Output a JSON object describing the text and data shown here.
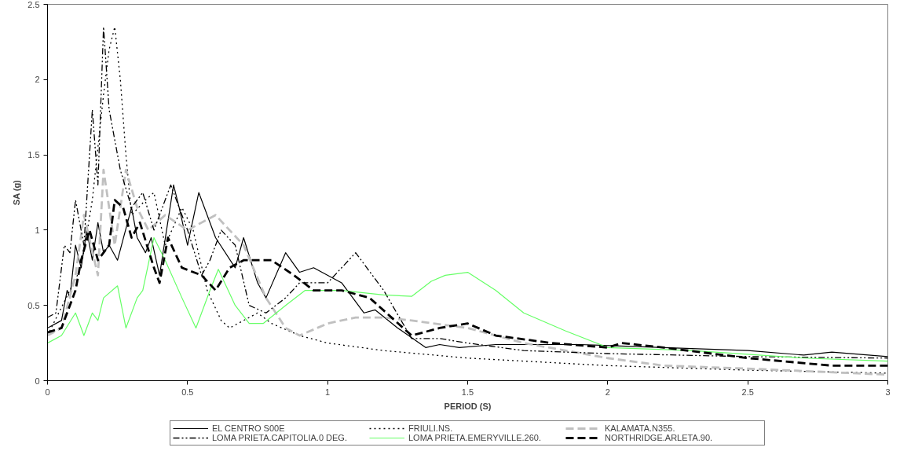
{
  "chart_data": {
    "type": "line",
    "xlabel": "PERIOD (S)",
    "ylabel": "SA (g)",
    "xlim": [
      0,
      3
    ],
    "ylim": [
      0,
      2.5
    ],
    "xticks": [
      0,
      0.5,
      1,
      1.5,
      2,
      2.5,
      3
    ],
    "yticks": [
      0,
      0.5,
      1,
      1.5,
      2,
      2.5
    ],
    "grid": false,
    "legend": "bottom",
    "series": [
      {
        "name": "EL CENTRO S00E",
        "color": "#000000",
        "line_style": "solid",
        "x": [
          0,
          0.05,
          0.07,
          0.08,
          0.1,
          0.12,
          0.14,
          0.16,
          0.18,
          0.2,
          0.22,
          0.25,
          0.3,
          0.32,
          0.35,
          0.37,
          0.4,
          0.45,
          0.47,
          0.5,
          0.54,
          0.6,
          0.67,
          0.7,
          0.75,
          0.78,
          0.85,
          0.9,
          0.95,
          1.05,
          1.13,
          1.17,
          1.25,
          1.35,
          1.4,
          1.47,
          1.6,
          1.9,
          2.2,
          2.5,
          2.7,
          2.8,
          3
        ],
        "values": [
          0.35,
          0.4,
          0.6,
          0.55,
          0.9,
          0.75,
          1.0,
          0.8,
          1.05,
          0.85,
          0.9,
          0.8,
          1.15,
          0.95,
          0.85,
          0.95,
          0.7,
          1.3,
          1.15,
          0.9,
          1.25,
          0.95,
          0.75,
          0.95,
          0.65,
          0.55,
          0.85,
          0.72,
          0.75,
          0.65,
          0.45,
          0.47,
          0.35,
          0.22,
          0.24,
          0.22,
          0.24,
          0.24,
          0.22,
          0.2,
          0.17,
          0.19,
          0.16
        ]
      },
      {
        "name": "FRIULI.NS.",
        "color": "#000000",
        "line_style": "dotted",
        "x": [
          0,
          0.04,
          0.08,
          0.12,
          0.16,
          0.2,
          0.22,
          0.24,
          0.26,
          0.28,
          0.3,
          0.35,
          0.38,
          0.42,
          0.48,
          0.52,
          0.57,
          0.62,
          0.65,
          0.7,
          0.75,
          0.8,
          0.9,
          1.0,
          1.2,
          1.5,
          2.0,
          2.5,
          3
        ],
        "values": [
          0.3,
          0.45,
          0.6,
          0.75,
          1.2,
          1.9,
          2.2,
          2.35,
          2.0,
          1.5,
          1.1,
          1.2,
          1.25,
          0.9,
          1.15,
          1.0,
          0.6,
          0.4,
          0.35,
          0.4,
          0.45,
          0.38,
          0.3,
          0.25,
          0.2,
          0.15,
          0.1,
          0.07,
          0.05
        ]
      },
      {
        "name": "KALAMATA.N355.",
        "color": "#c0c0c0",
        "line_style": "dashed",
        "x": [
          0,
          0.05,
          0.1,
          0.13,
          0.18,
          0.2,
          0.24,
          0.28,
          0.32,
          0.36,
          0.42,
          0.5,
          0.6,
          0.7,
          0.78,
          0.85,
          0.9,
          1.0,
          1.1,
          1.2,
          1.3,
          1.5,
          1.7,
          2.0,
          2.2,
          2.5,
          3
        ],
        "values": [
          0.3,
          0.35,
          0.7,
          1.1,
          0.7,
          1.4,
          0.9,
          1.4,
          1.15,
          1.0,
          1.1,
          1.0,
          1.1,
          0.9,
          0.55,
          0.35,
          0.3,
          0.38,
          0.42,
          0.42,
          0.4,
          0.35,
          0.25,
          0.15,
          0.1,
          0.08,
          0.04
        ]
      },
      {
        "name": "LOMA PRIETA.CAPITOLIA.0 DEG.",
        "color": "#000000",
        "line_style": "dashdot",
        "x": [
          0,
          0.03,
          0.06,
          0.08,
          0.1,
          0.13,
          0.16,
          0.18,
          0.2,
          0.22,
          0.26,
          0.3,
          0.34,
          0.38,
          0.44,
          0.5,
          0.55,
          0.58,
          0.62,
          0.67,
          0.72,
          0.78,
          0.85,
          0.9,
          1.0,
          1.1,
          1.2,
          1.3,
          1.4,
          1.5,
          1.7,
          2.0,
          2.5,
          3
        ],
        "values": [
          0.42,
          0.45,
          0.9,
          0.85,
          1.2,
          0.9,
          1.8,
          1.3,
          2.35,
          1.8,
          1.4,
          1.15,
          1.25,
          1.0,
          1.3,
          1.0,
          0.7,
          0.8,
          1.0,
          0.9,
          0.5,
          0.45,
          0.55,
          0.65,
          0.65,
          0.85,
          0.6,
          0.28,
          0.28,
          0.25,
          0.2,
          0.18,
          0.16,
          0.15
        ]
      },
      {
        "name": "LOMA PRIETA.EMERYVILLE.260.",
        "color": "#66ff66",
        "line_style": "solid",
        "x": [
          0,
          0.05,
          0.1,
          0.13,
          0.16,
          0.18,
          0.2,
          0.25,
          0.28,
          0.32,
          0.34,
          0.38,
          0.42,
          0.48,
          0.53,
          0.58,
          0.61,
          0.67,
          0.72,
          0.77,
          0.85,
          0.92,
          1.05,
          1.2,
          1.3,
          1.37,
          1.42,
          1.5,
          1.6,
          1.7,
          1.85,
          2.0,
          2.3,
          2.7,
          3
        ],
        "values": [
          0.25,
          0.3,
          0.45,
          0.3,
          0.45,
          0.4,
          0.55,
          0.63,
          0.35,
          0.55,
          0.6,
          0.95,
          0.8,
          0.55,
          0.35,
          0.6,
          0.74,
          0.5,
          0.38,
          0.38,
          0.5,
          0.6,
          0.6,
          0.57,
          0.56,
          0.66,
          0.7,
          0.72,
          0.6,
          0.45,
          0.33,
          0.22,
          0.2,
          0.15,
          0.13
        ]
      },
      {
        "name": "NORTHRIDGE.ARLETA.90.",
        "color": "#000000",
        "line_style": "dashed",
        "x": [
          0,
          0.05,
          0.1,
          0.12,
          0.15,
          0.18,
          0.22,
          0.24,
          0.27,
          0.3,
          0.33,
          0.38,
          0.4,
          0.43,
          0.48,
          0.55,
          0.6,
          0.65,
          0.7,
          0.8,
          0.88,
          0.95,
          1.05,
          1.15,
          1.3,
          1.4,
          1.5,
          1.6,
          1.8,
          2.0,
          2.05,
          2.2,
          2.5,
          2.8,
          3
        ],
        "values": [
          0.32,
          0.35,
          0.6,
          0.8,
          1.0,
          0.8,
          0.9,
          1.2,
          1.15,
          0.95,
          1.05,
          0.75,
          0.65,
          0.95,
          0.75,
          0.7,
          0.6,
          0.75,
          0.8,
          0.8,
          0.7,
          0.6,
          0.6,
          0.55,
          0.3,
          0.35,
          0.38,
          0.3,
          0.25,
          0.22,
          0.25,
          0.22,
          0.15,
          0.1,
          0.1
        ]
      }
    ]
  }
}
